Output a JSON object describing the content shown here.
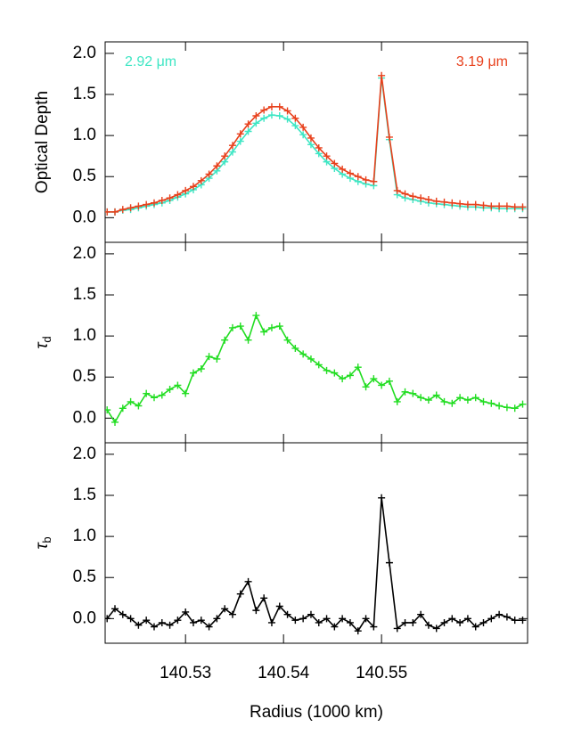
{
  "chart_data": [
    {
      "type": "line",
      "ylabel": [
        "Optical Depth"
      ],
      "x": [
        140.522,
        140.5228,
        140.5236,
        140.5244,
        140.5252,
        140.526,
        140.5268,
        140.5276,
        140.5284,
        140.5292,
        140.53,
        140.5308,
        140.5316,
        140.5324,
        140.5332,
        140.534,
        140.5348,
        140.5356,
        140.5364,
        140.5372,
        140.538,
        140.5388,
        140.5396,
        140.5404,
        140.5412,
        140.542,
        140.5428,
        140.5436,
        140.5444,
        140.5452,
        140.546,
        140.5468,
        140.5476,
        140.5484,
        140.5492,
        140.55,
        140.5508,
        140.5516,
        140.5524,
        140.5532,
        140.554,
        140.5548,
        140.5556,
        140.5564,
        140.5572,
        140.558,
        140.5588,
        140.5596,
        140.5604,
        140.5612,
        140.562,
        140.5628,
        140.5636,
        140.5644
      ],
      "series": [
        {
          "name": "2.92 μm",
          "color": "#3ee6c4",
          "values": [
            0.07,
            0.07,
            0.09,
            0.1,
            0.12,
            0.14,
            0.16,
            0.18,
            0.21,
            0.25,
            0.29,
            0.34,
            0.4,
            0.48,
            0.57,
            0.68,
            0.8,
            0.93,
            1.05,
            1.15,
            1.21,
            1.25,
            1.24,
            1.2,
            1.12,
            1.01,
            0.89,
            0.78,
            0.68,
            0.6,
            0.53,
            0.48,
            0.44,
            0.41,
            0.39,
            1.7,
            0.95,
            0.28,
            0.24,
            0.22,
            0.2,
            0.18,
            0.17,
            0.16,
            0.15,
            0.14,
            0.13,
            0.13,
            0.12,
            0.12,
            0.11,
            0.11,
            0.11,
            0.11
          ]
        },
        {
          "name": "3.19 μm",
          "color": "#e8401c",
          "values": [
            0.07,
            0.07,
            0.1,
            0.12,
            0.14,
            0.16,
            0.18,
            0.21,
            0.24,
            0.28,
            0.33,
            0.38,
            0.45,
            0.53,
            0.63,
            0.75,
            0.88,
            1.02,
            1.14,
            1.24,
            1.31,
            1.35,
            1.35,
            1.3,
            1.21,
            1.1,
            0.97,
            0.85,
            0.75,
            0.66,
            0.59,
            0.54,
            0.5,
            0.46,
            0.44,
            1.73,
            0.98,
            0.33,
            0.29,
            0.26,
            0.24,
            0.22,
            0.2,
            0.19,
            0.18,
            0.17,
            0.16,
            0.16,
            0.15,
            0.14,
            0.14,
            0.14,
            0.13,
            0.13
          ]
        }
      ],
      "xlim": [
        140.5218,
        140.5649
      ],
      "ylim": [
        -0.3,
        2.14
      ],
      "xticks": [
        140.53,
        140.54,
        140.55
      ],
      "yticks": [
        {
          "value": 0,
          "label": "0.0"
        },
        {
          "value": 0.5,
          "label": "0.5"
        },
        {
          "value": 1,
          "label": "1.0"
        },
        {
          "value": 1.5,
          "label": "1.5"
        },
        {
          "value": 2,
          "label": "2.0"
        }
      ]
    },
    {
      "type": "line",
      "ylabel": [
        "τ",
        "d"
      ],
      "x": [
        140.522,
        140.5228,
        140.5236,
        140.5244,
        140.5252,
        140.526,
        140.5268,
        140.5276,
        140.5284,
        140.5292,
        140.53,
        140.5308,
        140.5316,
        140.5324,
        140.5332,
        140.534,
        140.5348,
        140.5356,
        140.5364,
        140.5372,
        140.538,
        140.5388,
        140.5396,
        140.5404,
        140.5412,
        140.542,
        140.5428,
        140.5436,
        140.5444,
        140.5452,
        140.546,
        140.5468,
        140.5476,
        140.5484,
        140.5492,
        140.55,
        140.5508,
        140.5516,
        140.5524,
        140.5532,
        140.554,
        140.5548,
        140.5556,
        140.5564,
        140.5572,
        140.558,
        140.5588,
        140.5596,
        140.5604,
        140.5612,
        140.562,
        140.5628,
        140.5636,
        140.5644
      ],
      "series": [
        {
          "color": "#22dd22",
          "values": [
            0.1,
            -0.05,
            0.12,
            0.2,
            0.15,
            0.3,
            0.25,
            0.28,
            0.35,
            0.4,
            0.3,
            0.55,
            0.6,
            0.75,
            0.72,
            0.95,
            1.1,
            1.12,
            0.95,
            1.25,
            1.05,
            1.1,
            1.12,
            0.95,
            0.85,
            0.78,
            0.72,
            0.65,
            0.58,
            0.55,
            0.48,
            0.52,
            0.62,
            0.38,
            0.48,
            0.4,
            0.45,
            0.2,
            0.32,
            0.3,
            0.25,
            0.22,
            0.28,
            0.2,
            0.18,
            0.25,
            0.22,
            0.25,
            0.2,
            0.18,
            0.15,
            0.13,
            0.12,
            0.17
          ]
        }
      ],
      "xlim": [
        140.5218,
        140.5649
      ],
      "ylim": [
        -0.3,
        2.14
      ],
      "xticks": [
        140.53,
        140.54,
        140.55
      ],
      "yticks": [
        {
          "value": 0,
          "label": "0.0"
        },
        {
          "value": 0.5,
          "label": "0.5"
        },
        {
          "value": 1,
          "label": "1.0"
        },
        {
          "value": 1.5,
          "label": "1.5"
        },
        {
          "value": 2,
          "label": "2.0"
        }
      ]
    },
    {
      "type": "line",
      "ylabel": [
        "τ",
        "b"
      ],
      "xlabel": "Radius (1000 km)",
      "x": [
        140.522,
        140.5228,
        140.5236,
        140.5244,
        140.5252,
        140.526,
        140.5268,
        140.5276,
        140.5284,
        140.5292,
        140.53,
        140.5308,
        140.5316,
        140.5324,
        140.5332,
        140.534,
        140.5348,
        140.5356,
        140.5364,
        140.5372,
        140.538,
        140.5388,
        140.5396,
        140.5404,
        140.5412,
        140.542,
        140.5428,
        140.5436,
        140.5444,
        140.5452,
        140.546,
        140.5468,
        140.5476,
        140.5484,
        140.5492,
        140.55,
        140.5508,
        140.5516,
        140.5524,
        140.5532,
        140.554,
        140.5548,
        140.5556,
        140.5564,
        140.5572,
        140.558,
        140.5588,
        140.5596,
        140.5604,
        140.5612,
        140.562,
        140.5628,
        140.5636,
        140.5644
      ],
      "series": [
        {
          "color": "#000000",
          "values": [
            0.0,
            0.12,
            0.05,
            0.0,
            -0.08,
            -0.02,
            -0.1,
            -0.05,
            -0.08,
            -0.02,
            0.08,
            -0.05,
            -0.02,
            -0.1,
            0.0,
            0.12,
            0.05,
            0.3,
            0.45,
            0.1,
            0.25,
            -0.05,
            0.15,
            0.05,
            -0.02,
            0.0,
            0.05,
            -0.05,
            0.0,
            -0.1,
            0.0,
            -0.05,
            -0.15,
            0.0,
            -0.1,
            1.47,
            0.68,
            -0.12,
            -0.05,
            -0.05,
            0.05,
            -0.08,
            -0.12,
            -0.05,
            0.0,
            -0.05,
            0.0,
            -0.1,
            -0.05,
            0.0,
            0.05,
            0.02,
            -0.02,
            -0.02
          ]
        }
      ],
      "xlim": [
        140.5218,
        140.5649
      ],
      "ylim": [
        -0.3,
        2.14
      ],
      "xticks": [
        140.53,
        140.54,
        140.55
      ],
      "xticklabels": true,
      "yticks": [
        {
          "value": 0,
          "label": "0.0"
        },
        {
          "value": 0.5,
          "label": "0.5"
        },
        {
          "value": 1,
          "label": "1.0"
        },
        {
          "value": 1.5,
          "label": "1.5"
        },
        {
          "value": 2,
          "label": "2.0"
        }
      ]
    }
  ]
}
